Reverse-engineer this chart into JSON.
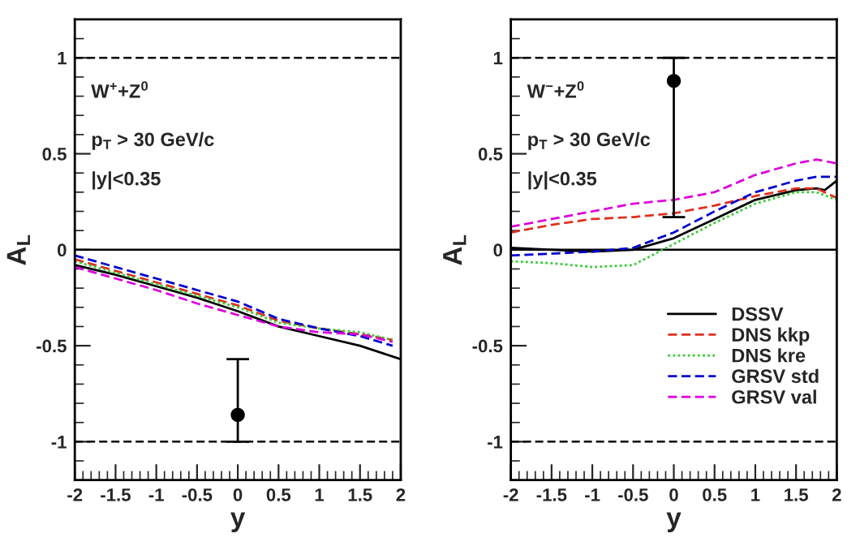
{
  "chart_data": [
    {
      "type": "line",
      "xlabel": "y",
      "ylabel": "A$_{L}$",
      "xlim": [
        -2,
        2
      ],
      "ylim": [
        -1.2,
        1.2
      ],
      "xticks": [
        -2,
        -1.5,
        -1,
        -0.5,
        0,
        0.5,
        1,
        1.5,
        2
      ],
      "yticks": [
        -1,
        -0.5,
        0,
        0.5,
        1
      ],
      "grid": false,
      "annotations": [
        "W$^{+}$+Z$^{0}$",
        "p$_{T}$ > 30 GeV/c",
        "|y|<0.35"
      ],
      "ref_lines": [
        {
          "axis": "y",
          "value": 1,
          "label": null,
          "color": "#000000",
          "line_style": "dashed"
        },
        {
          "axis": "y",
          "value": 0,
          "label": null,
          "color": "#000000",
          "line_style": "solid"
        },
        {
          "axis": "y",
          "value": -1,
          "label": null,
          "color": "#000000",
          "line_style": "dashed"
        }
      ],
      "series": [
        {
          "color": "#000000",
          "line_style": "solid",
          "x": [
            -2,
            -1.5,
            -1,
            -0.5,
            0,
            0.5,
            1,
            1.5,
            2
          ],
          "values": [
            -0.08,
            -0.13,
            -0.19,
            -0.25,
            -0.32,
            -0.4,
            -0.45,
            -0.5,
            -0.57
          ]
        },
        {
          "color": "#e03020",
          "line_style": "dashed",
          "x": [
            -2,
            -1.5,
            -1,
            -0.5,
            0,
            0.5,
            1,
            1.5,
            1.9
          ],
          "values": [
            -0.05,
            -0.11,
            -0.17,
            -0.23,
            -0.29,
            -0.37,
            -0.41,
            -0.44,
            -0.47
          ]
        },
        {
          "color": "#33cc33",
          "line_style": "dotted",
          "x": [
            -2,
            -1.5,
            -1,
            -0.5,
            0,
            0.5,
            1,
            1.5,
            1.9
          ],
          "values": [
            -0.06,
            -0.12,
            -0.18,
            -0.24,
            -0.3,
            -0.38,
            -0.41,
            -0.43,
            -0.47
          ]
        },
        {
          "color": "#0000cc",
          "line_style": "dashed",
          "x": [
            -2,
            -1.5,
            -1,
            -0.5,
            0,
            0.5,
            1,
            1.5,
            1.9
          ],
          "values": [
            -0.03,
            -0.09,
            -0.15,
            -0.21,
            -0.27,
            -0.36,
            -0.41,
            -0.45,
            -0.5
          ]
        },
        {
          "color": "#dd00dd",
          "line_style": "dashed",
          "x": [
            -2,
            -1.5,
            -1,
            -0.5,
            0,
            0.5,
            1,
            1.5,
            1.9
          ],
          "values": [
            -0.09,
            -0.15,
            -0.21,
            -0.28,
            -0.34,
            -0.4,
            -0.43,
            -0.44,
            -0.48
          ]
        },
        {
          "type": "scatter",
          "color": "#000000",
          "marker": "circle",
          "x": [
            0
          ],
          "values": [
            -0.86
          ],
          "errors": [
            [
              -1.0,
              -0.57
            ]
          ]
        }
      ]
    },
    {
      "type": "line",
      "xlabel": "y",
      "ylabel": "A$_{L}$",
      "xlim": [
        -2,
        2
      ],
      "ylim": [
        -1.2,
        1.2
      ],
      "xticks": [
        -2,
        -1.5,
        -1,
        -0.5,
        0,
        0.5,
        1,
        1.5,
        2
      ],
      "yticks": [
        -1,
        -0.5,
        0,
        0.5,
        1
      ],
      "grid": false,
      "legend": "bottom right",
      "annotations": [
        "W$^{−}$+Z$^{0}$",
        "p$_{T}$ > 30 GeV/c",
        "|y|<0.35"
      ],
      "ref_lines": [
        {
          "axis": "y",
          "value": 1,
          "label": null,
          "color": "#000000",
          "line_style": "dashed"
        },
        {
          "axis": "y",
          "value": 0,
          "label": null,
          "color": "#000000",
          "line_style": "solid"
        },
        {
          "axis": "y",
          "value": -1,
          "label": null,
          "color": "#000000",
          "line_style": "dashed"
        }
      ],
      "series": [
        {
          "name": "DSSV",
          "color": "#000000",
          "line_style": "solid",
          "x": [
            -2,
            -1.5,
            -1,
            -0.5,
            0,
            0.5,
            1,
            1.5,
            1.75,
            1.85,
            2
          ],
          "values": [
            0.01,
            0.0,
            -0.01,
            0.0,
            0.06,
            0.16,
            0.26,
            0.31,
            0.32,
            0.31,
            0.36
          ]
        },
        {
          "name": "DNS kkp",
          "color": "#e03020",
          "line_style": "dashed",
          "x": [
            -2,
            -1.5,
            -1,
            -0.5,
            0,
            0.5,
            1,
            1.5,
            1.75,
            2
          ],
          "values": [
            0.09,
            0.13,
            0.16,
            0.17,
            0.19,
            0.23,
            0.28,
            0.32,
            0.32,
            0.27
          ]
        },
        {
          "name": "DNS kre",
          "color": "#33cc33",
          "line_style": "dotted",
          "x": [
            -2,
            -1.5,
            -1,
            -0.5,
            0,
            0.5,
            1,
            1.5,
            1.75,
            2
          ],
          "values": [
            -0.06,
            -0.07,
            -0.09,
            -0.08,
            0.03,
            0.14,
            0.24,
            0.3,
            0.3,
            0.26
          ]
        },
        {
          "name": "GRSV std",
          "color": "#0000cc",
          "line_style": "dashed",
          "x": [
            -2,
            -1.5,
            -1,
            -0.5,
            0,
            0.5,
            1,
            1.5,
            1.75,
            2
          ],
          "values": [
            -0.03,
            -0.02,
            -0.01,
            0.01,
            0.09,
            0.2,
            0.3,
            0.36,
            0.38,
            0.38
          ]
        },
        {
          "name": "GRSV val",
          "color": "#dd00dd",
          "line_style": "dashed",
          "x": [
            -2,
            -1.5,
            -1,
            -0.5,
            0,
            0.5,
            1,
            1.5,
            1.75,
            2
          ],
          "values": [
            0.12,
            0.16,
            0.2,
            0.24,
            0.26,
            0.3,
            0.39,
            0.45,
            0.47,
            0.45
          ]
        },
        {
          "type": "scatter",
          "color": "#000000",
          "marker": "circle",
          "x": [
            0
          ],
          "values": [
            0.88
          ],
          "errors": [
            [
              0.17,
              1.0
            ]
          ]
        }
      ]
    }
  ]
}
